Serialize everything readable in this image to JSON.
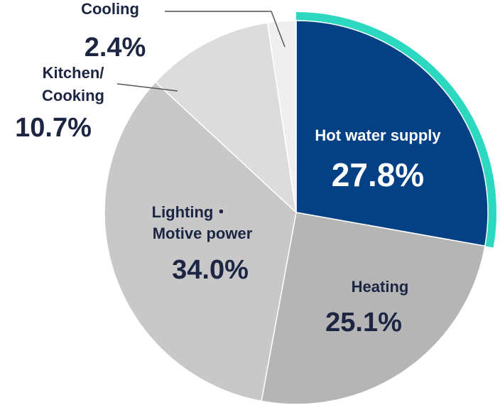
{
  "chart_data": {
    "type": "pie",
    "title": "",
    "slices": [
      {
        "label": "Hot water supply",
        "value": 27.8,
        "value_text": "27.8%",
        "color": "#034184",
        "highlight_color": "#2cd9c0",
        "highlighted": true
      },
      {
        "label": "Heating",
        "value": 25.1,
        "value_text": "25.1%",
        "color": "#b5b5b5"
      },
      {
        "label": "Lighting・Motive power",
        "label_lines": [
          "Lighting・",
          "Motive power"
        ],
        "value": 34.0,
        "value_text": "34.0%",
        "color": "#c8c8c8"
      },
      {
        "label": "Kitchen/Cooking",
        "label_lines": [
          "Kitchen/",
          "Cooking"
        ],
        "value": 10.7,
        "value_text": "10.7%",
        "color": "#dcdcdc"
      },
      {
        "label": "Cooling",
        "value": 2.4,
        "value_text": "2.4%",
        "color": "#efefef"
      }
    ],
    "start_angle": "12 o'clock",
    "direction": "clockwise",
    "text_colors": {
      "on_dark": "#ffffff",
      "on_light": "#1c2541",
      "leader_line": "#555555"
    }
  }
}
